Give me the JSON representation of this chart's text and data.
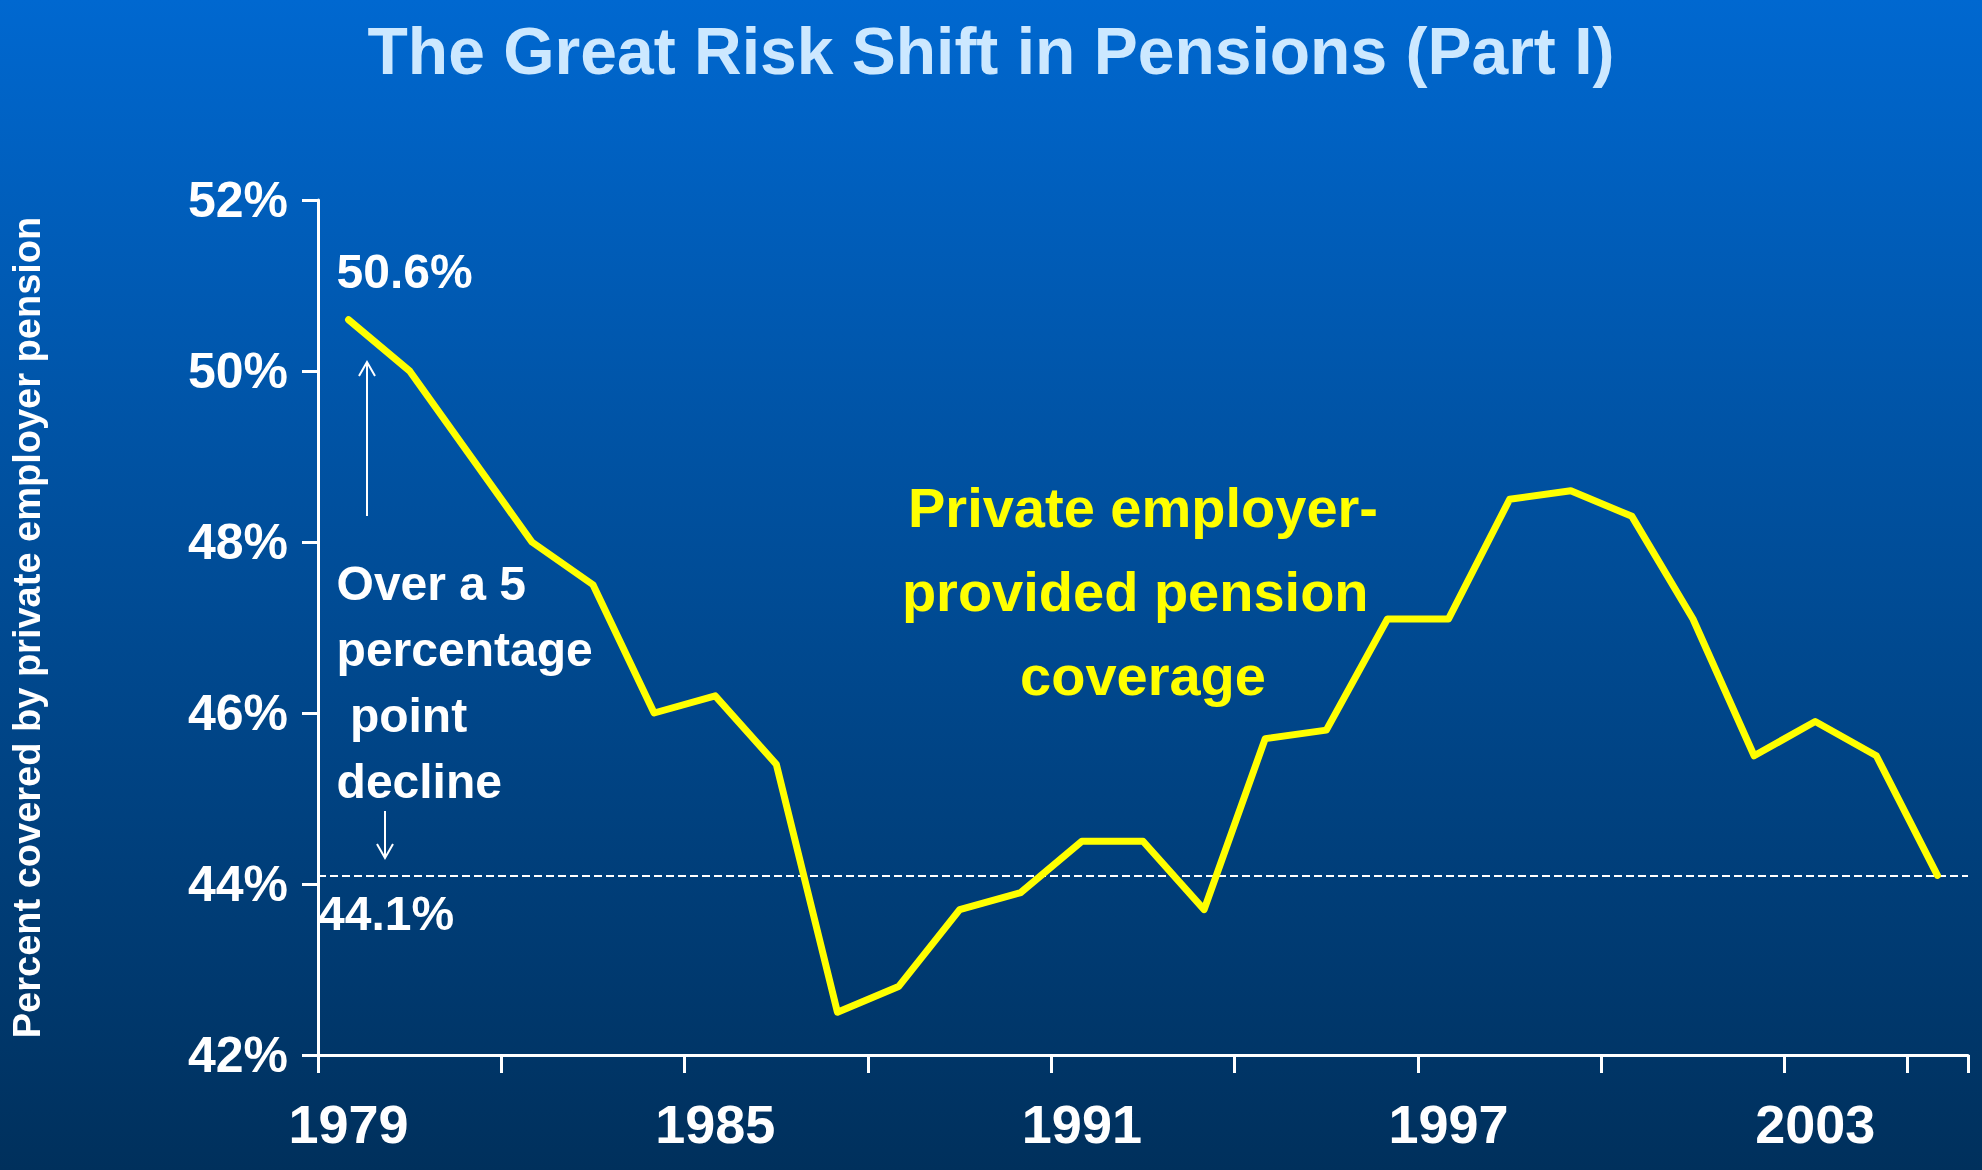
{
  "chart_data": {
    "type": "line",
    "title": "The Great Risk Shift in Pensions (Part I)",
    "ylabel": "Percent covered by private employer pension",
    "categories": [
      "1979",
      null,
      null,
      null,
      null,
      null,
      "1985",
      null,
      null,
      null,
      null,
      null,
      "1991",
      null,
      null,
      null,
      null,
      null,
      "1997",
      null,
      null,
      null,
      null,
      null,
      "2003",
      null,
      null
    ],
    "series": [
      {
        "name": "Private employer-provided pension coverage",
        "color": "#ffff00",
        "values": [
          50.6,
          50.0,
          49.0,
          48.0,
          47.5,
          46.0,
          46.2,
          45.4,
          42.5,
          42.8,
          43.7,
          43.9,
          44.5,
          44.5,
          43.7,
          45.7,
          45.8,
          47.1,
          47.1,
          48.5,
          48.6,
          48.3,
          47.1,
          45.5,
          45.9,
          45.5,
          44.1
        ]
      }
    ],
    "ylim": [
      42,
      52
    ],
    "yticks": [
      {
        "value": 42,
        "label": "42%"
      },
      {
        "value": 44,
        "label": "44%"
      },
      {
        "value": 46,
        "label": "46%"
      },
      {
        "value": 48,
        "label": "48%"
      },
      {
        "value": 50,
        "label": "50%"
      },
      {
        "value": 52,
        "label": "52%"
      }
    ],
    "ref_lines": [
      {
        "axis": "y",
        "value": 44.1,
        "label": "44.1%",
        "color": "#ffffff",
        "line_style": "dashed"
      }
    ],
    "annotations": [
      {
        "text": "50.6%",
        "x": "1979",
        "y": 50.6
      },
      "Over a 5 percentage point decline"
    ],
    "grid": false,
    "legend": false,
    "marker": "none",
    "line_style": "solid"
  }
}
